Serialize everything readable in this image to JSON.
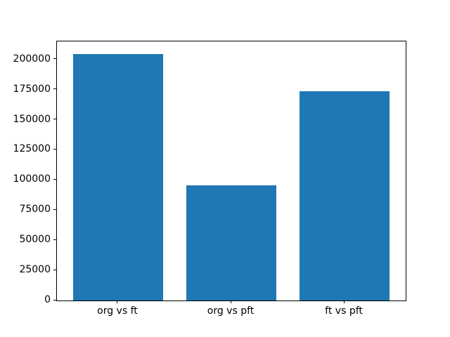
{
  "chart_data": {
    "type": "bar",
    "title": "",
    "xlabel": "",
    "ylabel": "",
    "categories": [
      "org vs ft",
      "org vs pft",
      "ft vs pft"
    ],
    "values": [
      204800,
      95500,
      173500
    ],
    "yticks": [
      0,
      25000,
      50000,
      75000,
      100000,
      125000,
      150000,
      175000,
      200000
    ],
    "ylim": [
      0,
      215000
    ],
    "xlim": [
      -0.54,
      2.54
    ],
    "bar_width": 0.8,
    "bar_color": "#1f77b4",
    "axes_color": "#000000",
    "background_color": "#ffffff",
    "grid": false,
    "legend": null
  }
}
